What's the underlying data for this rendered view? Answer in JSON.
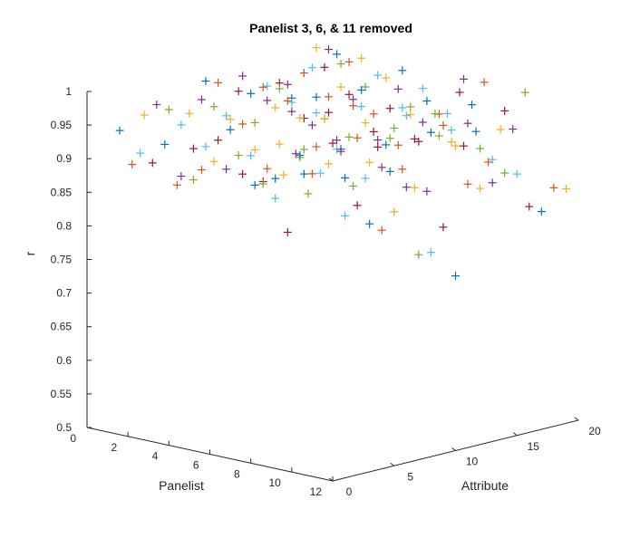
{
  "chart_data": {
    "type": "scatter",
    "title": "Panelist 3, 6, & 11 removed",
    "xlabel": "Attribute",
    "ylabel": "Panelist",
    "zlabel": "r",
    "xlim": [
      0,
      20
    ],
    "ylim": [
      0,
      12
    ],
    "zlim": [
      0.5,
      1
    ],
    "x_ticks": [
      0,
      5,
      10,
      15,
      20
    ],
    "y_ticks": [
      0,
      2,
      4,
      6,
      8,
      10,
      12
    ],
    "z_ticks": [
      0.5,
      0.55,
      0.6,
      0.65,
      0.7,
      0.75,
      0.8,
      0.85,
      0.9,
      0.95,
      1
    ],
    "z_tick_labels": [
      "0.5",
      "0.55",
      "0.6",
      "0.65",
      "0.7",
      "0.75",
      "0.8",
      "0.85",
      "0.9",
      "0.95",
      "1"
    ],
    "grid": false,
    "marker": "+",
    "series_colors": [
      "#0072BD",
      "#D95319",
      "#EDB120",
      "#7E2F8E",
      "#77AC30",
      "#4DBEEE",
      "#A2142F"
    ],
    "series": [
      {
        "panelist": 1,
        "values": [
          0.944,
          0.889,
          0.958,
          0.969,
          0.957,
          0.93,
          0.89,
          0.986,
          0.979,
          0.92,
          0.98,
          0.906,
          0.956,
          0.956,
          0.929,
          0.962,
          0.995,
          0.988,
          0.962
        ]
      },
      {
        "panelist": 2,
        "values": [
          0.917,
          0.898,
          0.921,
          0.856,
          0.958,
          0.974,
          0.959,
          0.941,
          0.973,
          0.965,
          0.97,
          0.935,
          0.965,
          0.852,
          0.981,
          0.977,
          0.992,
          0.976,
          0.977
        ]
      },
      {
        "panelist": 4,
        "values": [
          0.896,
          0.886,
          0.931,
          0.936,
          0.947,
          0.951,
          0.908,
          0.977,
          0.99,
          0.965,
          0.937,
          0.964,
          0.96,
          0.97,
          0.947,
          0.961,
          0.974,
          0.92,
          0.972
        ]
      },
      {
        "panelist": 5,
        "values": [
          0.912,
          0.92,
          0.904,
          0.92,
          0.915,
          0.872,
          0.872,
          0.983,
          0.953,
          0.938,
          0.943,
          0.893,
          0.97,
          0.972,
          0.932,
          0.981,
          0.96,
          0.929,
          0.952
        ]
      },
      {
        "panelist": 7,
        "values": [
          0.919,
          0.898,
          0.918,
          0.95,
          0.994,
          0.933,
          0.983,
          0.979,
          0.92,
          0.98,
          0.95,
          0.92,
          0.918,
          0.959,
          0.908,
          0.96,
          0.936,
          0.89,
          0.979
        ]
      },
      {
        "panelist": 8,
        "values": [
          0.911,
          0.885,
          0.83,
          0.94,
          0.908,
          0.985,
          0.949,
          0.949,
          0.99,
          0.948,
          0.924,
          0.919,
          0.96,
          0.944,
          0.952,
          0.948,
          0.975,
          0.952,
          0.981
        ]
      },
      {
        "panelist": 9,
        "values": [
          0.931,
          0.958,
          0.894,
          0.92,
          0.96,
          0.904,
          0.959,
          0.918,
          0.906,
          0.96,
          0.974,
          0.931,
          0.94,
          0.946,
          0.911,
          0.94,
          0.898,
          0.877,
          0.945
        ]
      },
      {
        "panelist": 10,
        "values": [
          0.939,
          0.975,
          0.945,
          0.959,
          0.903,
          0.91,
          0.952,
          0.911,
          0.91,
          0.878,
          0.868,
          0.946,
          0.95,
          0.922,
          0.939,
          0.889,
          0.933,
          0.929,
          0.979
        ]
      },
      {
        "panelist": 12,
        "values": [
          0.89,
          0.901,
          0.869,
          0.855,
          0.878,
          0.91,
          0.805,
          0.804,
          0.837,
          0.76,
          0.892,
          0.881,
          0.885,
          0.895,
          0.889,
          0.836,
          0.824,
          0.855,
          0.849
        ]
      }
    ]
  }
}
